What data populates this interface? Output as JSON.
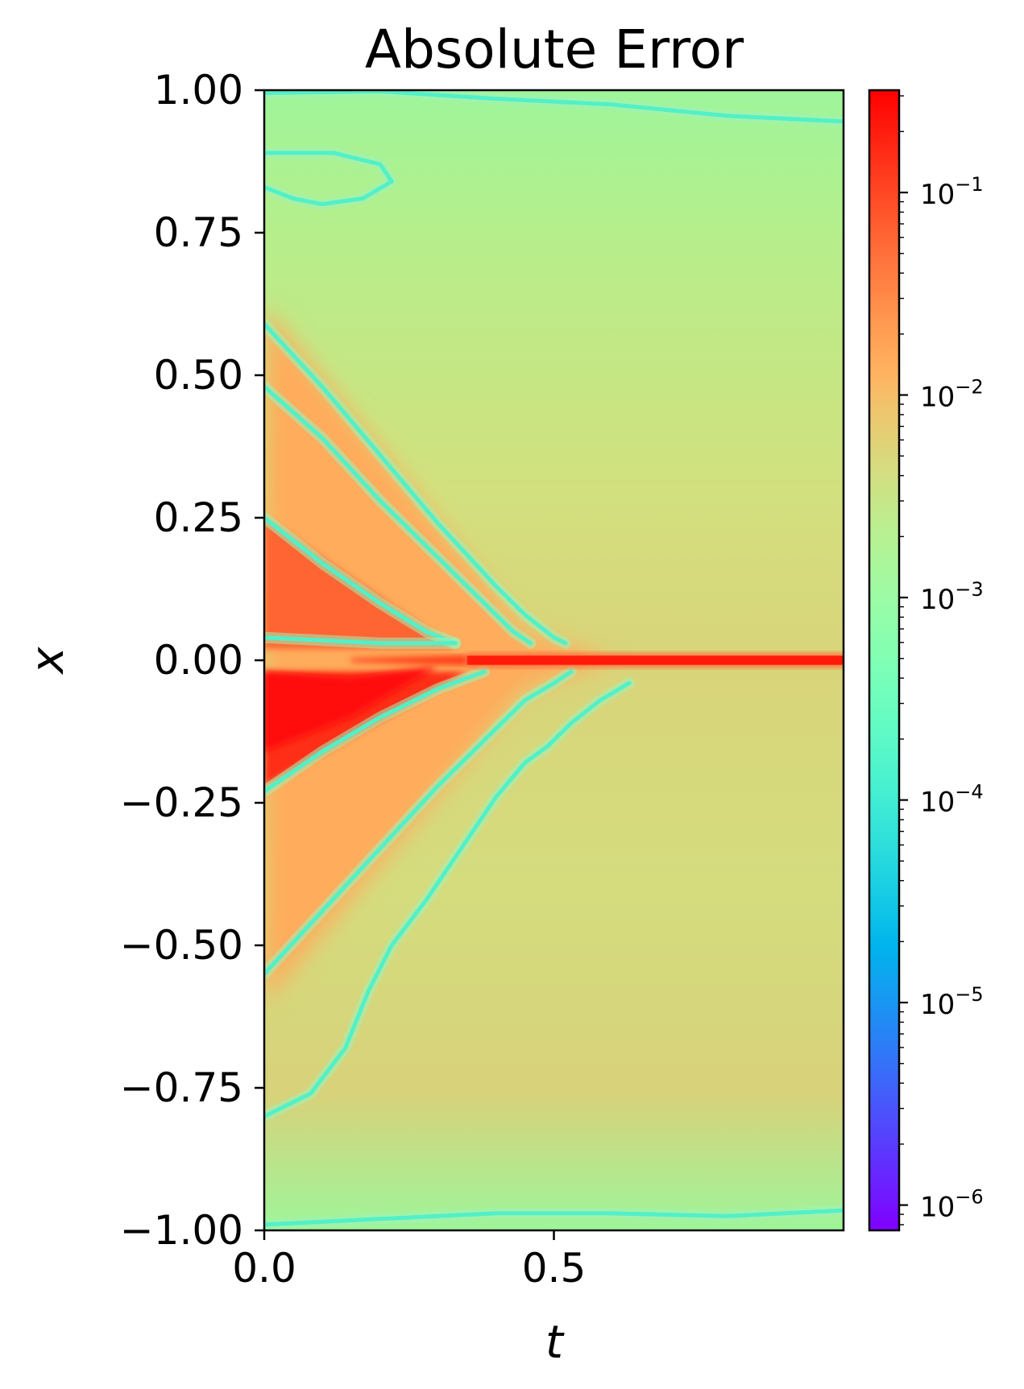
{
  "chart_data": {
    "type": "heatmap",
    "title": "Absolute Error",
    "xlabel": "t",
    "ylabel": "x",
    "xlim": [
      0.0,
      1.0
    ],
    "ylim": [
      -1.0,
      1.0
    ],
    "x_ticks": [
      {
        "value": 0.0,
        "label": "0.0"
      },
      {
        "value": 0.5,
        "label": "0.5"
      }
    ],
    "y_ticks": [
      {
        "value": 1.0,
        "label": "1.00"
      },
      {
        "value": 0.75,
        "label": "0.75"
      },
      {
        "value": 0.5,
        "label": "0.50"
      },
      {
        "value": 0.25,
        "label": "0.25"
      },
      {
        "value": 0.0,
        "label": "0.00"
      },
      {
        "value": -0.25,
        "label": "−0.25"
      },
      {
        "value": -0.5,
        "label": "−0.50"
      },
      {
        "value": -0.75,
        "label": "−0.75"
      },
      {
        "value": -1.0,
        "label": "−1.00"
      }
    ],
    "colorbar": {
      "scale": "log",
      "colormap": "rainbow",
      "range": [
        7.5e-07,
        0.32
      ],
      "ticks": [
        {
          "value": 1e-06,
          "base": "10",
          "exp": "−6"
        },
        {
          "value": 1e-05,
          "base": "10",
          "exp": "−5"
        },
        {
          "value": 0.0001,
          "base": "10",
          "exp": "−4"
        },
        {
          "value": 0.001,
          "base": "10",
          "exp": "−3"
        },
        {
          "value": 0.01,
          "base": "10",
          "exp": "−2"
        },
        {
          "value": 0.1,
          "base": "10",
          "exp": "−1"
        }
      ]
    },
    "grid": false,
    "regions": {
      "shock_line": {
        "x_value": 0.0,
        "t_start": 0.35,
        "t_end": 1.0,
        "error": 0.3
      },
      "left_wedge_upper": {
        "t_range": [
          0.0,
          0.33
        ],
        "x_range": [
          0.02,
          0.25
        ],
        "error": 0.06
      },
      "left_wedge_lower": {
        "t_range": [
          0.0,
          0.35
        ],
        "x_range": [
          -0.22,
          -0.02
        ],
        "error": 0.15
      },
      "far_field_upper": {
        "error": 0.003
      },
      "far_field_lower": {
        "error": 0.004
      }
    },
    "zero_crossing_curves": [
      [
        [
          0.0,
          0.59
        ],
        [
          0.1,
          0.48
        ],
        [
          0.2,
          0.36
        ],
        [
          0.3,
          0.24
        ],
        [
          0.4,
          0.13
        ],
        [
          0.45,
          0.08
        ],
        [
          0.5,
          0.04
        ],
        [
          0.52,
          0.03
        ]
      ],
      [
        [
          0.0,
          0.48
        ],
        [
          0.1,
          0.39
        ],
        [
          0.2,
          0.28
        ],
        [
          0.3,
          0.18
        ],
        [
          0.38,
          0.1
        ],
        [
          0.43,
          0.05
        ],
        [
          0.46,
          0.03
        ]
      ],
      [
        [
          0.0,
          0.25
        ],
        [
          0.1,
          0.17
        ],
        [
          0.2,
          0.1
        ],
        [
          0.28,
          0.05
        ],
        [
          0.33,
          0.03
        ]
      ],
      [
        [
          0.0,
          0.04
        ],
        [
          0.1,
          0.035
        ],
        [
          0.2,
          0.03
        ],
        [
          0.33,
          0.03
        ]
      ],
      [
        [
          0.0,
          -0.23
        ],
        [
          0.1,
          -0.16
        ],
        [
          0.2,
          -0.1
        ],
        [
          0.3,
          -0.05
        ],
        [
          0.38,
          -0.02
        ]
      ],
      [
        [
          0.0,
          -0.55
        ],
        [
          0.1,
          -0.44
        ],
        [
          0.2,
          -0.33
        ],
        [
          0.3,
          -0.22
        ],
        [
          0.38,
          -0.14
        ],
        [
          0.45,
          -0.07
        ],
        [
          0.5,
          -0.04
        ],
        [
          0.53,
          -0.02
        ]
      ],
      [
        [
          0.0,
          -0.8
        ],
        [
          0.08,
          -0.76
        ],
        [
          0.14,
          -0.68
        ],
        [
          0.18,
          -0.58
        ],
        [
          0.22,
          -0.5
        ],
        [
          0.28,
          -0.42
        ],
        [
          0.34,
          -0.33
        ],
        [
          0.4,
          -0.24
        ],
        [
          0.45,
          -0.18
        ],
        [
          0.49,
          -0.15
        ],
        [
          0.53,
          -0.11
        ],
        [
          0.58,
          -0.07
        ],
        [
          0.63,
          -0.04
        ]
      ],
      [
        [
          0.0,
          0.83
        ],
        [
          0.05,
          0.81
        ],
        [
          0.1,
          0.8
        ],
        [
          0.17,
          0.81
        ],
        [
          0.22,
          0.84
        ],
        [
          0.2,
          0.87
        ],
        [
          0.12,
          0.89
        ],
        [
          0.05,
          0.89
        ],
        [
          0.0,
          0.89
        ]
      ],
      [
        [
          0.0,
          0.995
        ],
        [
          0.2,
          0.998
        ],
        [
          0.4,
          0.985
        ],
        [
          0.6,
          0.975
        ],
        [
          0.8,
          0.955
        ],
        [
          1.0,
          0.945
        ]
      ],
      [
        [
          0.0,
          -0.99
        ],
        [
          0.2,
          -0.98
        ],
        [
          0.4,
          -0.97
        ],
        [
          0.6,
          -0.97
        ],
        [
          0.8,
          -0.975
        ],
        [
          1.0,
          -0.965
        ]
      ]
    ]
  }
}
